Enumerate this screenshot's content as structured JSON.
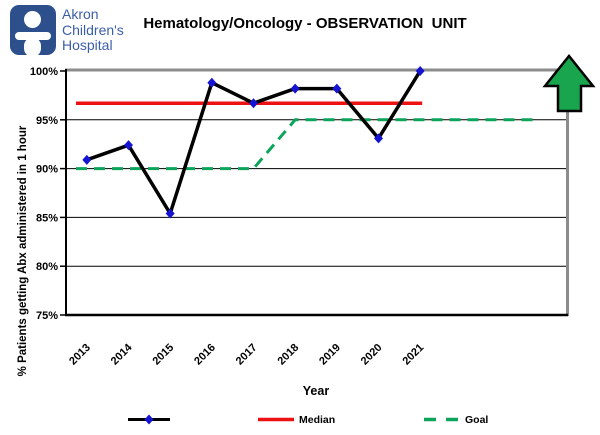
{
  "header": {
    "logo_lines": [
      "Akron",
      "Children's",
      "Hospital"
    ],
    "title": "Hematology/Oncology - OBSERVATION  UNIT"
  },
  "chart_data": {
    "type": "line",
    "title": "Hematology/Oncology - OBSERVATION UNIT",
    "categories": [
      "2013",
      "2014",
      "2015",
      "2016",
      "2017",
      "2018",
      "2019",
      "2020",
      "2021"
    ],
    "series": [
      {
        "name": "",
        "role": "data",
        "values": [
          90.9,
          92.4,
          85.4,
          98.8,
          96.7,
          98.2,
          98.2,
          93.1,
          100
        ],
        "line_color": "#000000",
        "marker": "diamond",
        "marker_color": "#1414d2"
      },
      {
        "name": "Median",
        "role": "reference",
        "constant": 96.7,
        "color": "#ee1111"
      },
      {
        "name": "Goal",
        "role": "reference",
        "dashed": true,
        "color": "#0ca45a",
        "breakpoints": [
          [
            -0.26,
            90
          ],
          [
            4,
            90
          ],
          [
            5,
            95
          ],
          [
            10.8,
            95
          ]
        ]
      }
    ],
    "xlabel": "Year",
    "ylabel": "% Patients getting Abx administered in 1 hour",
    "ylim": [
      75,
      100
    ],
    "ytick_values": [
      100,
      95,
      90,
      85,
      80,
      75
    ],
    "ytick_labels": [
      "100%",
      "95%",
      "90%",
      "85%",
      "80%",
      "75%"
    ],
    "grid": true,
    "total_slots": 12,
    "annotation": "green-up-arrow",
    "legend_position": "bottom"
  },
  "legend": {
    "items": [
      {
        "label": "",
        "type": "data-series"
      },
      {
        "label": "Median",
        "type": "median-line"
      },
      {
        "label": "Goal",
        "type": "goal-line"
      }
    ]
  },
  "colors": {
    "logo_blue": "#2d4f8c",
    "logo_text_blue": "#3b5ea9",
    "median_red": "#ee1111",
    "goal_green": "#0ca45a",
    "marker_blue": "#1414d2",
    "arrow_green": "#18a54e",
    "border_gray": "#8c8c8c"
  }
}
